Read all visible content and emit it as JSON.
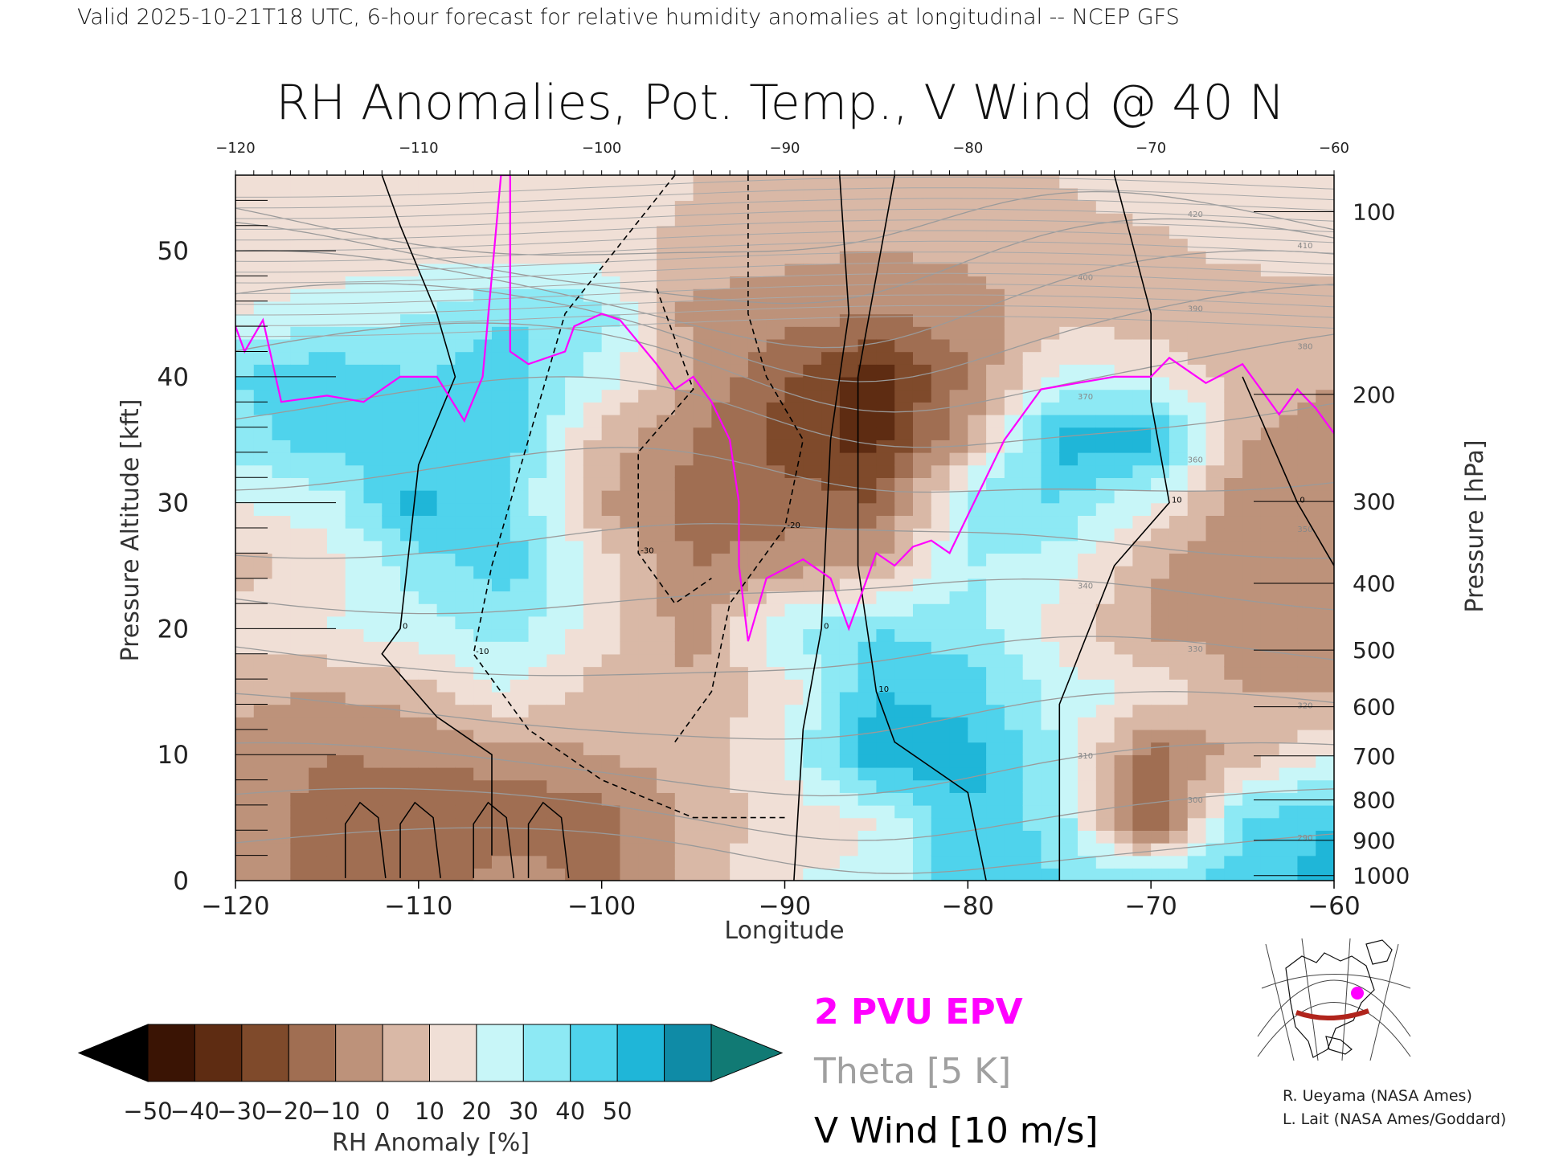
{
  "header": "Valid 2025-10-21T18 UTC, 6-hour forecast for relative humidity anomalies at longitudinal -- NCEP GFS",
  "chart_data": {
    "type": "heatmap",
    "title": "RH Anomalies, Pot. Temp., V Wind @ 40 N",
    "xlabel": "Longitude",
    "ylabel": "Pressure Altitude [kft]",
    "y2label": "Pressure [hPa]",
    "xlim": [
      -120,
      -60
    ],
    "ylim": [
      0,
      56
    ],
    "x_ticks": [
      "−120",
      "−110",
      "−100",
      "−90",
      "−80",
      "−70",
      "−60"
    ],
    "x_ticks_top": [
      "−120",
      "−110",
      "−100",
      "−90",
      "−80",
      "−70",
      "−60"
    ],
    "y_ticks": [
      "0",
      "10",
      "20",
      "30",
      "40",
      "50"
    ],
    "pressure_ticks": [
      {
        "hpa": "100",
        "kft": 53.1
      },
      {
        "hpa": "200",
        "kft": 38.6
      },
      {
        "hpa": "300",
        "kft": 30.1
      },
      {
        "hpa": "400",
        "kft": 23.6
      },
      {
        "hpa": "500",
        "kft": 18.3
      },
      {
        "hpa": "600",
        "kft": 13.8
      },
      {
        "hpa": "700",
        "kft": 9.9
      },
      {
        "hpa": "800",
        "kft": 6.4
      },
      {
        "hpa": "900",
        "kft": 3.2
      },
      {
        "hpa": "1000",
        "kft": 0.4
      }
    ],
    "colorbar": {
      "label": "RH Anomaly [%]",
      "ticks": [
        "−50",
        "−40",
        "−30",
        "−20",
        "−10",
        "0",
        "10",
        "20",
        "30",
        "40",
        "50"
      ],
      "colors": [
        "#3a1404",
        "#5e2c12",
        "#7f4a2b",
        "#a06e52",
        "#bd927a",
        "#d9b8a6",
        "#f0dfd6",
        "#c8f6f8",
        "#8de9f4",
        "#4fd3ec",
        "#1fb6d8",
        "#0f8ba6"
      ],
      "over_color": "#117a74",
      "under_color": "#000000"
    },
    "rh_anomaly_field": {
      "lon": [
        -120,
        -115,
        -110,
        -105,
        -100,
        -95,
        -90,
        -85,
        -80,
        -75,
        -70,
        -65,
        -60
      ],
      "alt": [
        0,
        5,
        10,
        15,
        20,
        25,
        30,
        35,
        40,
        45,
        50,
        55
      ],
      "values": [
        [
          -8,
          -25,
          -30,
          -12,
          -25,
          -5,
          10,
          12,
          38,
          30,
          28,
          35,
          45
        ],
        [
          -15,
          -25,
          -30,
          -28,
          -25,
          -8,
          5,
          10,
          40,
          25,
          -35,
          30,
          40
        ],
        [
          -12,
          -20,
          -18,
          -15,
          -10,
          -5,
          10,
          50,
          45,
          20,
          -25,
          -5,
          10
        ],
        [
          -8,
          -10,
          -5,
          10,
          -5,
          -8,
          5,
          40,
          35,
          15,
          8,
          -10,
          -10
        ],
        [
          5,
          10,
          15,
          25,
          5,
          -15,
          20,
          30,
          25,
          5,
          -12,
          -15,
          -15
        ],
        [
          -5,
          5,
          25,
          35,
          5,
          -20,
          -15,
          -10,
          20,
          15,
          -8,
          -20,
          -20
        ],
        [
          10,
          15,
          45,
          30,
          -10,
          -25,
          -25,
          -30,
          25,
          30,
          10,
          -15,
          -20
        ],
        [
          25,
          35,
          30,
          35,
          -5,
          -20,
          -35,
          -45,
          -10,
          45,
          48,
          -10,
          -15
        ],
        [
          30,
          38,
          30,
          35,
          15,
          -10,
          -30,
          -45,
          -20,
          15,
          10,
          -5,
          -10
        ],
        [
          10,
          15,
          20,
          30,
          25,
          -15,
          -15,
          -20,
          -15,
          -5,
          -5,
          -8,
          -5
        ],
        [
          5,
          3,
          5,
          8,
          5,
          -3,
          -8,
          -10,
          -8,
          -5,
          -2,
          3,
          5
        ],
        [
          3,
          2,
          2,
          3,
          3,
          0,
          -2,
          -5,
          -3,
          0,
          3,
          5,
          5
        ]
      ]
    },
    "theta_isentropes": [
      290,
      300,
      310,
      320,
      330,
      340,
      350,
      360,
      370,
      380,
      390,
      400,
      410,
      420
    ],
    "v_wind_contours": [
      -30,
      -20,
      -10,
      0,
      10
    ],
    "legend": [
      {
        "label": "2 PVU EPV",
        "color": "#ff00ff"
      },
      {
        "label": "Theta [5 K]",
        "color": "#a0a0a0"
      },
      {
        "label": "V Wind [10 m/s]",
        "color": "#000000"
      }
    ]
  },
  "credits": [
    "R. Ueyama (NASA Ames)",
    "L. Lait (NASA Ames/Goddard)"
  ]
}
